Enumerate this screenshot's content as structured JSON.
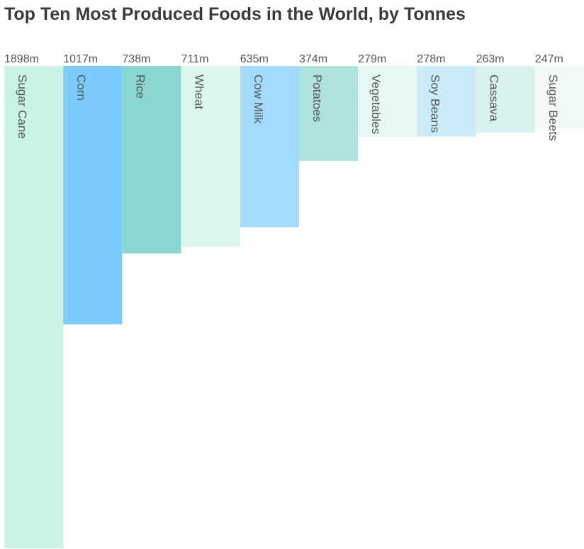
{
  "chart_data": {
    "type": "bar",
    "title": "Top Ten Most Produced Foods in the World, by Tonnes",
    "xlabel": "",
    "ylabel": "",
    "categories": [
      "Sugar Cane",
      "Corn",
      "Rice",
      "Wheat",
      "Cow Milk",
      "Potatoes",
      "Vegetables",
      "Soy Beans",
      "Cassava",
      "Sugar Beets"
    ],
    "values": [
      1898,
      1017,
      738,
      711,
      635,
      374,
      279,
      278,
      263,
      247
    ],
    "value_labels": [
      "1898m",
      "1017m",
      "738m",
      "711m",
      "635m",
      "374m",
      "279m",
      "278m",
      "263m",
      "247m"
    ],
    "unit": "million tonnes",
    "ylim": [
      0,
      1898
    ],
    "orientation": "vertical, bars hanging downward from top",
    "grid": false,
    "legend": "none",
    "colors": [
      "#c8f3e5",
      "#7dcbfd",
      "#8ad6d0",
      "#dcf6ef",
      "#a3dcfb",
      "#aee3dd",
      "#e6f8f3",
      "#cbebfb",
      "#d6f1ee",
      "#f3fbf9"
    ]
  }
}
